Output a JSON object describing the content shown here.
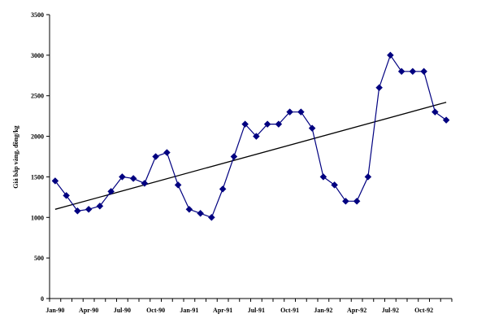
{
  "chart_data": {
    "type": "line",
    "title": "",
    "xlabel": "",
    "ylabel": "Giá bắp vàng, đồng/kg",
    "ylim": [
      0,
      3500
    ],
    "yticks": [
      0,
      500,
      1000,
      1500,
      2000,
      2500,
      3000,
      3500
    ],
    "x_tick_labels": [
      "Jan-90",
      "Apr-90",
      "Jul-90",
      "Oct-90",
      "Jan-91",
      "Apr-91",
      "Jul-91",
      "Oct-91",
      "Jan-92",
      "Apr-92",
      "Jul-92",
      "Oct-92"
    ],
    "grid": false,
    "legend": "none",
    "series": [
      {
        "values": [
          1450,
          1270,
          1080,
          1100,
          1140,
          1320,
          1500,
          1480,
          1420,
          1750,
          1800,
          1400,
          1100,
          1050,
          1000,
          1350,
          1750,
          2150,
          2000,
          2150,
          2150,
          2300,
          2300,
          2100,
          1500,
          1400,
          1200,
          1200,
          1500,
          2600,
          3000,
          2800,
          2800,
          2800,
          2300,
          2200
        ],
        "color": "#000080"
      }
    ],
    "trendline": {
      "start": 1100,
      "end": 2420,
      "color": "#000000"
    }
  }
}
